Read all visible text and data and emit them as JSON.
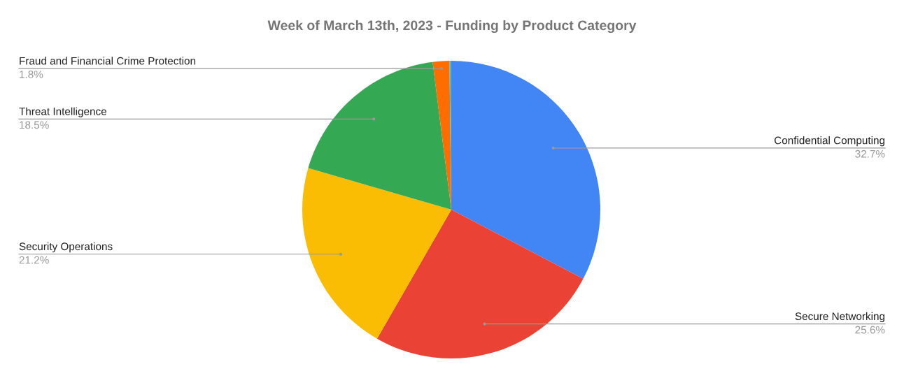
{
  "chart_data": {
    "type": "pie",
    "title": "Week of March 13th, 2023 - Funding by Product Category",
    "categories": [
      "Confidential Computing",
      "Secure Networking",
      "Security Operations",
      "Threat Intelligence",
      "Fraud and Financial Crime Protection",
      null
    ],
    "values": [
      32.7,
      25.6,
      21.2,
      18.5,
      1.8,
      0.2
    ],
    "colors": [
      "#4285f4",
      "#ea4335",
      "#fbbc04",
      "#34a853",
      "#ff6d01",
      "#46bdc6"
    ],
    "value_labels": [
      "32.7%",
      "25.6%",
      "21.2%",
      "18.5%",
      "1.8%",
      null
    ],
    "legend": false
  }
}
